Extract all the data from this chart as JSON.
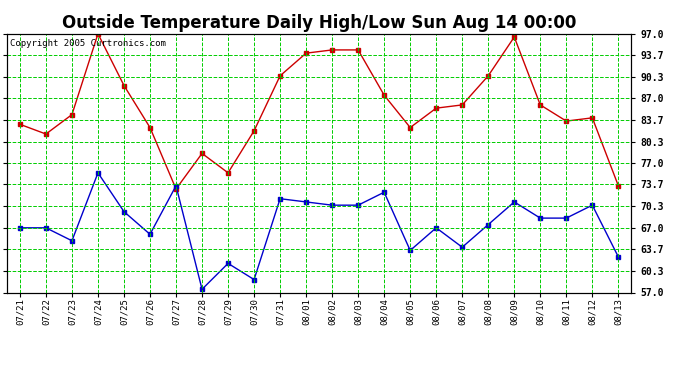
{
  "title": "Outside Temperature Daily High/Low Sun Aug 14 00:00",
  "copyright": "Copyright 2005 Curtronics.com",
  "x_labels": [
    "07/21",
    "07/22",
    "07/23",
    "07/24",
    "07/25",
    "07/26",
    "07/27",
    "07/28",
    "07/29",
    "07/30",
    "07/31",
    "08/01",
    "08/02",
    "08/03",
    "08/04",
    "08/05",
    "08/06",
    "08/07",
    "08/08",
    "08/09",
    "08/10",
    "08/11",
    "08/12",
    "08/13"
  ],
  "high_values": [
    83.0,
    81.5,
    84.5,
    97.0,
    89.0,
    82.5,
    73.0,
    78.5,
    75.5,
    82.0,
    90.5,
    94.0,
    94.5,
    94.5,
    87.5,
    82.5,
    85.5,
    86.0,
    90.5,
    96.5,
    86.0,
    83.5,
    84.0,
    73.5
  ],
  "low_values": [
    67.0,
    67.0,
    65.0,
    75.5,
    69.5,
    66.0,
    73.5,
    57.5,
    61.5,
    59.0,
    71.5,
    71.0,
    70.5,
    70.5,
    72.5,
    63.5,
    67.0,
    64.0,
    67.5,
    71.0,
    68.5,
    68.5,
    70.5,
    62.5
  ],
  "high_color": "#cc0000",
  "low_color": "#0000cc",
  "bg_color": "#ffffff",
  "grid_color": "#00cc00",
  "title_fontsize": 12,
  "ylabel_right": [
    "57.0",
    "60.3",
    "63.7",
    "67.0",
    "70.3",
    "73.7",
    "77.0",
    "80.3",
    "83.7",
    "87.0",
    "90.3",
    "93.7",
    "97.0"
  ],
  "ylim": [
    57.0,
    97.0
  ],
  "yticks": [
    57.0,
    60.3,
    63.7,
    67.0,
    70.3,
    73.7,
    77.0,
    80.3,
    83.7,
    87.0,
    90.3,
    93.7,
    97.0
  ]
}
